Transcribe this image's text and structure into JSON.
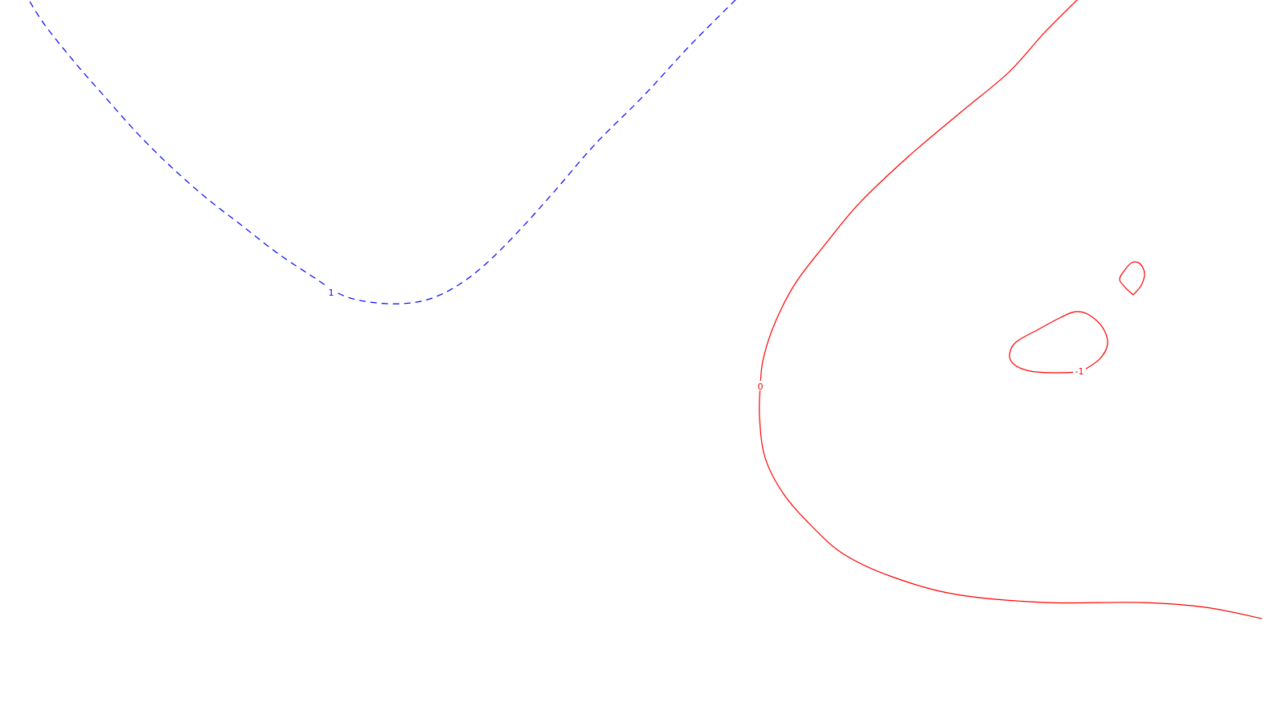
{
  "chart_data": {
    "type": "contour",
    "title": "",
    "xlabel": "",
    "ylabel": "",
    "grid": false,
    "legend": "none",
    "series": [
      {
        "id": "level-1",
        "level_label": "1",
        "color": "#0000ff",
        "line_style": "dashed",
        "paths": [
          [
            [
              30,
              -10
            ],
            [
              55,
              30
            ],
            [
              95,
              80
            ],
            [
              130,
              120
            ],
            [
              170,
              165
            ],
            [
              210,
              205
            ],
            [
              255,
              245
            ],
            [
              300,
              280
            ],
            [
              345,
              315
            ],
            [
              390,
              345
            ],
            [
              425,
              367
            ],
            [
              460,
              376
            ],
            [
              500,
              378
            ],
            [
              535,
              372
            ],
            [
              570,
              355
            ],
            [
              605,
              328
            ],
            [
              645,
              288
            ],
            [
              690,
              238
            ],
            [
              740,
              180
            ],
            [
              800,
              120
            ],
            [
              860,
              55
            ],
            [
              920,
              -5
            ]
          ]
        ]
      },
      {
        "id": "level-0",
        "level_label": "0",
        "color": "#ff0000",
        "line_style": "solid",
        "paths": [
          [
            [
              1345,
              -5
            ],
            [
              1300,
              40
            ],
            [
              1255,
              90
            ],
            [
              1195,
              140
            ],
            [
              1130,
              195
            ],
            [
              1070,
              252
            ],
            [
              1030,
              300
            ],
            [
              990,
              352
            ],
            [
              965,
              400
            ],
            [
              950,
              445
            ],
            [
              946,
              480
            ],
            [
              945,
              520
            ],
            [
              952,
              570
            ],
            [
              975,
              615
            ],
            [
              1010,
              655
            ],
            [
              1050,
              690
            ],
            [
              1110,
              718
            ],
            [
              1190,
              740
            ],
            [
              1300,
              750
            ],
            [
              1420,
              750
            ],
            [
              1500,
              756
            ],
            [
              1570,
              770
            ]
          ]
        ]
      },
      {
        "id": "level-minus-1",
        "level_label": "-1",
        "color": "#ff0000",
        "line_style": "solid",
        "paths": [
          [
            [
              1345,
              463
            ],
            [
              1368,
              447
            ],
            [
              1378,
              428
            ],
            [
              1372,
              408
            ],
            [
              1355,
              392
            ],
            [
              1338,
              388
            ],
            [
              1318,
              396
            ],
            [
              1292,
              410
            ],
            [
              1264,
              426
            ],
            [
              1256,
              442
            ],
            [
              1262,
              454
            ],
            [
              1282,
              462
            ],
            [
              1310,
              464
            ],
            [
              1345,
              463
            ]
          ],
          [
            [
              1410,
              367
            ],
            [
              1420,
              355
            ],
            [
              1424,
              340
            ],
            [
              1418,
              328
            ],
            [
              1408,
              327
            ],
            [
              1398,
              338
            ],
            [
              1393,
              348
            ],
            [
              1400,
              358
            ],
            [
              1410,
              367
            ]
          ]
        ]
      }
    ],
    "labels": [
      {
        "text": "1",
        "x": 412,
        "y": 364,
        "color": "#0000ff"
      },
      {
        "text": "0",
        "x": 946,
        "y": 481,
        "color": "#ff0000"
      },
      {
        "text": "-1",
        "x": 1343,
        "y": 462,
        "color": "#ff0000"
      }
    ]
  }
}
